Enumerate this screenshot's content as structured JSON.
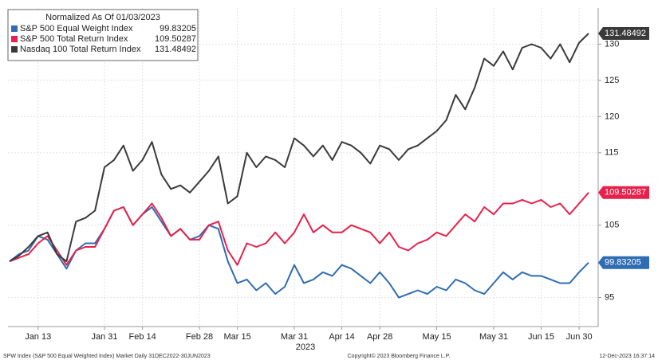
{
  "chart_data": {
    "type": "line",
    "legend_title": "Normalized As Of 01/03/2023",
    "categories": [
      null,
      null,
      null,
      "Jan 13",
      null,
      null,
      null,
      null,
      null,
      null,
      "Jan 31",
      null,
      null,
      null,
      "Feb 14",
      null,
      null,
      null,
      null,
      null,
      "Feb 28",
      null,
      null,
      null,
      "Mar 15",
      null,
      null,
      null,
      null,
      null,
      "Mar 31",
      null,
      null,
      null,
      null,
      "Apr 14",
      null,
      null,
      null,
      "Apr 28",
      null,
      null,
      null,
      null,
      null,
      "May 15",
      null,
      null,
      null,
      null,
      null,
      "May 31",
      null,
      null,
      null,
      null,
      "Jun 15",
      null,
      null,
      null,
      "Jun 30",
      null
    ],
    "x_year_label": "2023",
    "series": [
      {
        "name": "S&P 500 Equal Weight Index",
        "color": "#2f6cb3",
        "values": [
          100,
          101,
          101.5,
          103.5,
          103,
          101,
          99,
          101.5,
          102.5,
          102.5,
          104.5,
          107,
          107.5,
          105,
          106.5,
          107.5,
          105.5,
          103.5,
          104.5,
          103,
          103.5,
          105,
          104.5,
          100,
          97,
          97.5,
          96,
          97,
          95.5,
          96.5,
          99.5,
          97,
          97.5,
          98.5,
          98,
          99.5,
          99,
          98,
          97,
          98.5,
          97,
          95,
          95.5,
          96,
          95.5,
          96.5,
          96,
          97.5,
          97,
          96,
          95.5,
          97,
          98.5,
          97.5,
          98.5,
          98,
          98,
          97.5,
          97,
          97,
          98.5,
          99.83205
        ]
      },
      {
        "name": "S&P 500 Total Return Index",
        "color": "#e8204a",
        "values": [
          100,
          100.5,
          101,
          102.5,
          103.5,
          101.5,
          99.5,
          101.5,
          102,
          102,
          104.5,
          107,
          107.5,
          105,
          106.5,
          108,
          106,
          103.5,
          104.5,
          103,
          103,
          105,
          105.5,
          101.5,
          99.5,
          102.5,
          102,
          102.5,
          104,
          102.5,
          104,
          106.5,
          104,
          105,
          104,
          104,
          105,
          104.5,
          104,
          102.5,
          104,
          102,
          101.5,
          102.5,
          103,
          104,
          103.5,
          105,
          106.5,
          105.5,
          107.5,
          106.5,
          108,
          108,
          108.5,
          108,
          108.5,
          107.5,
          108,
          106.5,
          108,
          109.50287
        ]
      },
      {
        "name": "Nasdaq 100 Total Return Index",
        "color": "#3a3a3a",
        "values": [
          100,
          100.8,
          102,
          103.5,
          104,
          101,
          100,
          105.5,
          106,
          107,
          113,
          114,
          116,
          112.5,
          114,
          116.5,
          112,
          110,
          110.5,
          109.5,
          111,
          112.5,
          114.5,
          108,
          109,
          115,
          113,
          114.5,
          114,
          113,
          117,
          116,
          114.5,
          116,
          114,
          116.5,
          116,
          115,
          113.5,
          116,
          115.5,
          114,
          115.5,
          116,
          117,
          118,
          119.5,
          123,
          121,
          124,
          128,
          127,
          129,
          126.5,
          129.5,
          130,
          129.5,
          128,
          130,
          127.5,
          130.2,
          131.48492
        ]
      }
    ],
    "ylim": [
      91,
      135
    ],
    "yticks": [
      95,
      105,
      115,
      120,
      125,
      130
    ],
    "grid": true,
    "legend": "upper left",
    "footer_left": "SPW Index (S&P 500 Equal Weighted Index) Market  Daily 31DEC2022-30JUN2023",
    "footer_center": "Copyright© 2023 Bloomberg Finance L.P.",
    "footer_right": "12-Dec-2023 16:37:14"
  }
}
